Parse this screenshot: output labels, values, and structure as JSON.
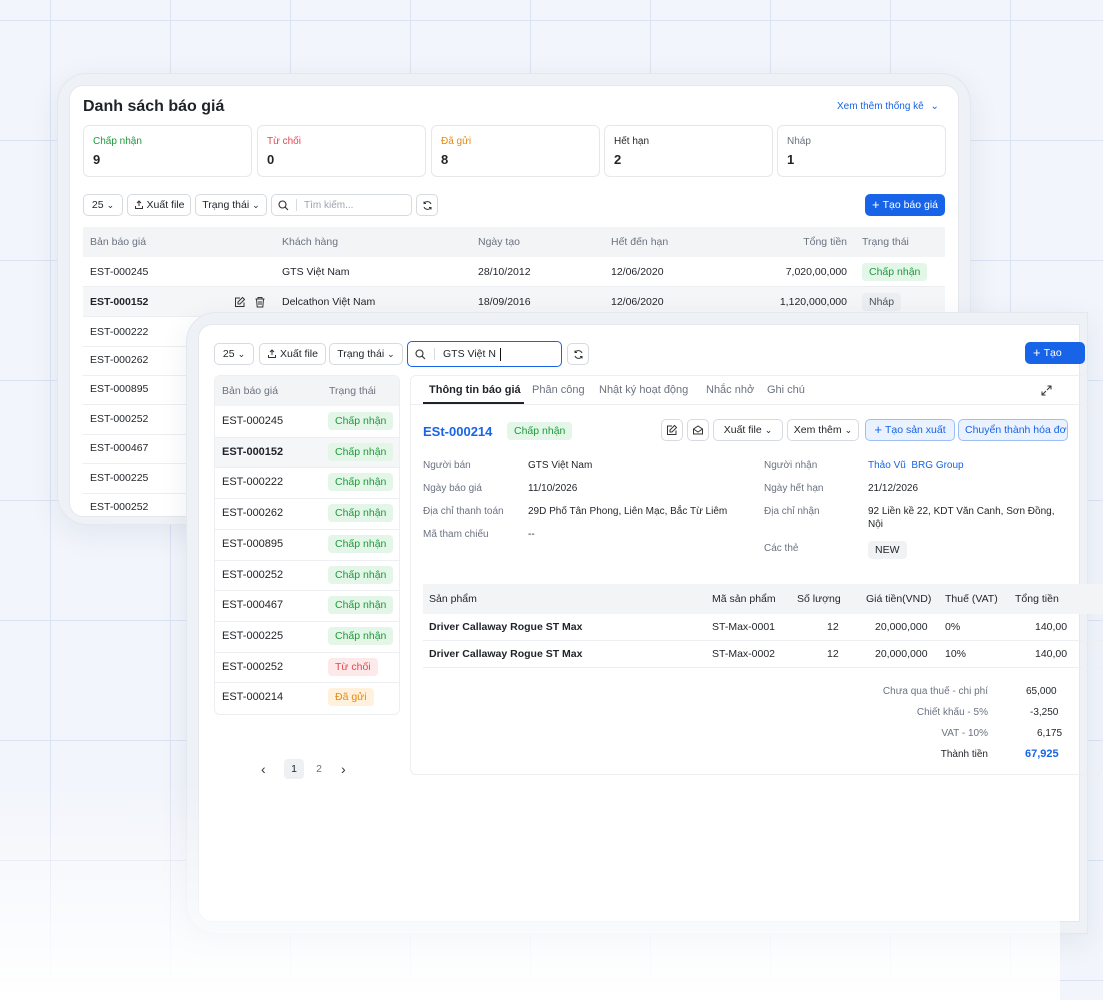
{
  "back": {
    "title": "Danh sách báo giá",
    "stats_link": "Xem thêm thống kê",
    "cards": [
      {
        "label": "Chấp nhận",
        "value": "9",
        "color": "#1e9a3c"
      },
      {
        "label": "Từ chối",
        "value": "0",
        "color": "#e0484f"
      },
      {
        "label": "Đã gửi",
        "value": "8",
        "color": "#e38a10"
      },
      {
        "label": "Hết hạn",
        "value": "2",
        "color": "#1f2328"
      },
      {
        "label": "Nháp",
        "value": "1",
        "color": "#6b7280"
      }
    ],
    "toolbar": {
      "page_size": "25",
      "export": "Xuất file",
      "status": "Trạng thái",
      "search_placeholder": "Tìm kiếm...",
      "create": "Tạo báo giá"
    },
    "headers": [
      "Bản báo giá",
      "Khách hàng",
      "Ngày tạo",
      "Hết đến hạn",
      "Tổng tiền",
      "Trạng thái"
    ],
    "rows": [
      {
        "code": "EST-000245",
        "customer": "GTS Việt Nam",
        "created": "28/10/2012",
        "due": "12/06/2020",
        "total": "7,020,00,000",
        "status": "Chấp nhận"
      },
      {
        "code": "EST-000152",
        "customer": "Delcathon Việt Nam",
        "created": "18/09/2016",
        "due": "12/06/2020",
        "total": "1,120,000,000",
        "status": "Nháp"
      }
    ],
    "more_codes": [
      "EST-000222",
      "EST-000262",
      "EST-000895",
      "EST-000252",
      "EST-000467",
      "EST-000225",
      "EST-000252"
    ]
  },
  "front": {
    "toolbar": {
      "page_size": "25",
      "export": "Xuất file",
      "status": "Trạng thái",
      "search_value": "GTS Việt N",
      "create": "Tạo"
    },
    "list": {
      "headers": [
        "Bản báo giá",
        "Trạng thái"
      ],
      "rows": [
        {
          "code": "EST-000245",
          "status": "Chấp nhận"
        },
        {
          "code": "EST-000152",
          "status": "Chấp nhận"
        },
        {
          "code": "EST-000222",
          "status": "Chấp nhận"
        },
        {
          "code": "EST-000262",
          "status": "Chấp nhận"
        },
        {
          "code": "EST-000895",
          "status": "Chấp nhận"
        },
        {
          "code": "EST-000252",
          "status": "Chấp nhận"
        },
        {
          "code": "EST-000467",
          "status": "Chấp nhận"
        },
        {
          "code": "EST-000225",
          "status": "Chấp nhận"
        },
        {
          "code": "EST-000252",
          "status": "Từ chối"
        },
        {
          "code": "EST-000214",
          "status": "Đã gửi"
        }
      ],
      "pages": [
        "1",
        "2"
      ]
    },
    "detail": {
      "tabs": [
        "Thông tin báo giá",
        "Phân công",
        "Nhật ký hoạt động",
        "Nhắc nhở",
        "Ghi chú"
      ],
      "code": "ESt-000214",
      "status": "Chấp nhận",
      "actions": {
        "export": "Xuất file",
        "more": "Xem thêm",
        "create_production": "Tạo sản xuất",
        "convert_invoice": "Chuyển thành hóa đơ"
      },
      "left_fields": [
        {
          "label": "Người bán",
          "value": "GTS Việt Nam"
        },
        {
          "label": "Ngày báo giá",
          "value": "11/10/2026"
        },
        {
          "label": "Địa chỉ thanh toán",
          "value": "29D Phố Tân Phong, Liên Mạc, Bắc Từ Liêm"
        },
        {
          "label": "Mã tham chiếu",
          "value": "--"
        }
      ],
      "receiver": {
        "label": "Người nhận",
        "name": "Thảo Vũ",
        "company": "BRG Group"
      },
      "expiry": {
        "label": "Ngày hết hạn",
        "value": "21/12/2026"
      },
      "ship_addr": {
        "label": "Địa chỉ nhận",
        "line1": "92 Liền kề 22, KDT Văn Canh, Sơn Đồng,",
        "line2": "Nội"
      },
      "tags": {
        "label": "Các thẻ",
        "value": "NEW"
      },
      "product_headers": [
        "Sản phẩm",
        "Mã sản phẩm",
        "Số lượng",
        "Giá tiền(VND)",
        "Thuế (VAT)",
        "Tổng tiền"
      ],
      "products": [
        {
          "name": "Driver Callaway Rogue ST Max",
          "sku": "ST-Max-0001",
          "qty": "12",
          "price": "20,000,000",
          "vat": "0%",
          "total": "140,00"
        },
        {
          "name": "Driver Callaway Rogue ST Max",
          "sku": "ST-Max-0002",
          "qty": "12",
          "price": "20,000,000",
          "vat": "10%",
          "total": "140,00"
        }
      ],
      "summary": [
        {
          "label": "Chưa qua thuế - chi phí",
          "value": "65,000"
        },
        {
          "label": "Chiết khấu - 5%",
          "value": "-3,250"
        },
        {
          "label": "VAT - 10%",
          "value": "6,175"
        },
        {
          "label": "Thành tiền",
          "value": "67,925"
        }
      ]
    }
  }
}
